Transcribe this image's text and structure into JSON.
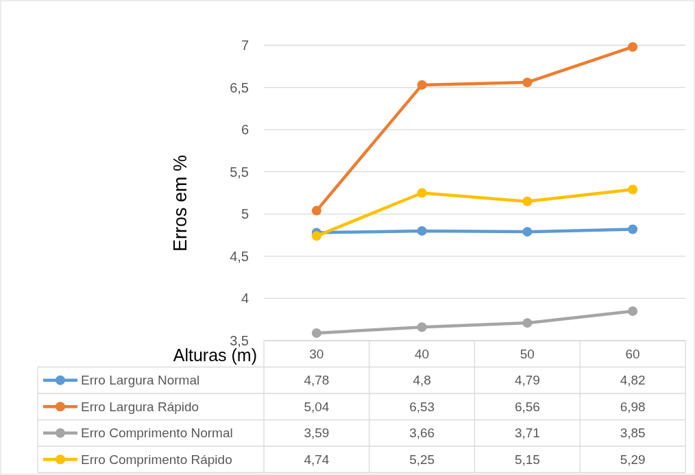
{
  "chart_data": {
    "type": "line",
    "xlabel": "Alturas (m)",
    "ylabel": "Erros em %",
    "categories": [
      "30",
      "40",
      "50",
      "60"
    ],
    "series": [
      {
        "name": "Erro Largura Normal",
        "color": "#5b9bd5",
        "values": [
          4.78,
          4.8,
          4.79,
          4.82
        ],
        "value_labels": [
          "4,78",
          "4,8",
          "4,79",
          "4,82"
        ]
      },
      {
        "name": "Erro Largura Rápido",
        "color": "#ed7d31",
        "values": [
          5.04,
          6.53,
          6.56,
          6.98
        ],
        "value_labels": [
          "5,04",
          "6,53",
          "6,56",
          "6,98"
        ]
      },
      {
        "name": "Erro Comprimento Normal",
        "color": "#a5a5a5",
        "values": [
          3.59,
          3.66,
          3.71,
          3.85
        ],
        "value_labels": [
          "3,59",
          "3,66",
          "3,71",
          "3,85"
        ]
      },
      {
        "name": "Erro Comprimento Rápido",
        "color": "#ffc000",
        "values": [
          4.74,
          5.25,
          5.15,
          5.29
        ],
        "value_labels": [
          "4,74",
          "5,25",
          "5,15",
          "5,29"
        ]
      }
    ],
    "ylim": [
      3.5,
      7
    ],
    "yticks": [
      {
        "value": 3.5,
        "label": "3,5"
      },
      4,
      {
        "value": 4.5,
        "label": "4,5"
      },
      5,
      {
        "value": 5.5,
        "label": "5,5"
      },
      6,
      {
        "value": 6.5,
        "label": "6,5"
      },
      7
    ],
    "grid": "y",
    "legend": "bottom",
    "marker": "circle",
    "line_style": "solid"
  }
}
